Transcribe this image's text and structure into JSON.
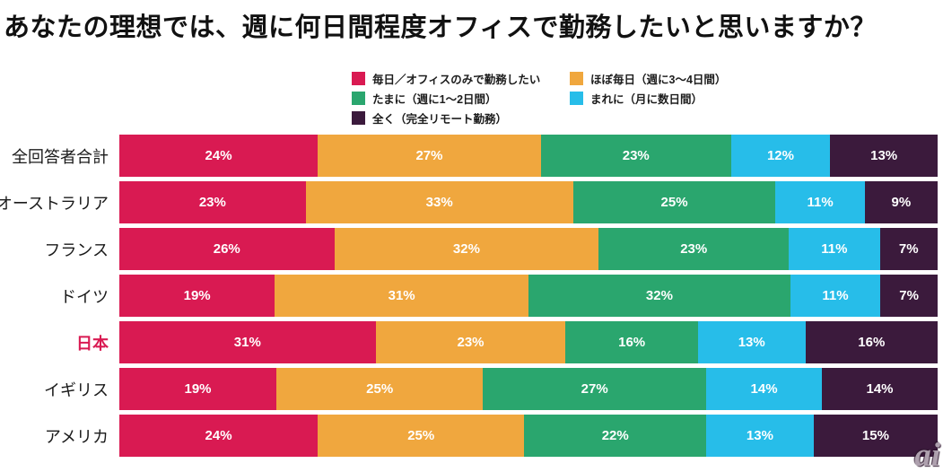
{
  "title": "あなたの理想では、週に何日間程度オフィスで勤務したいと思いますか？",
  "watermark": "ai",
  "chart_data": {
    "type": "bar",
    "subtype": "horizontal_stacked_percent",
    "title": "あなたの理想では、週に何日間程度オフィスで勤務したいと思いますか？",
    "legend_position": "top",
    "value_suffix": "%",
    "series_labels": [
      "毎日／オフィスのみで勤務したい",
      "ほぼ毎日（週に3〜4日間）",
      "たまに（週に1〜2日間）",
      "まれに（月に数日間）",
      "全く（完全リモート勤務）"
    ],
    "series_colors": [
      "#D91A52",
      "#F0A73E",
      "#2AA66E",
      "#27BDE9",
      "#3B1A3C"
    ],
    "categories": [
      "全回答者合計",
      "オーストラリア",
      "フランス",
      "ドイツ",
      "日本",
      "イギリス",
      "アメリカ"
    ],
    "highlighted_category": "日本",
    "highlight_color": "#D91A52",
    "rows": [
      [
        24,
        27,
        23,
        12,
        13
      ],
      [
        23,
        33,
        25,
        11,
        9
      ],
      [
        26,
        32,
        23,
        11,
        7
      ],
      [
        19,
        31,
        32,
        11,
        7
      ],
      [
        31,
        23,
        16,
        13,
        16
      ],
      [
        19,
        25,
        27,
        14,
        14
      ],
      [
        24,
        25,
        22,
        13,
        15
      ]
    ]
  }
}
